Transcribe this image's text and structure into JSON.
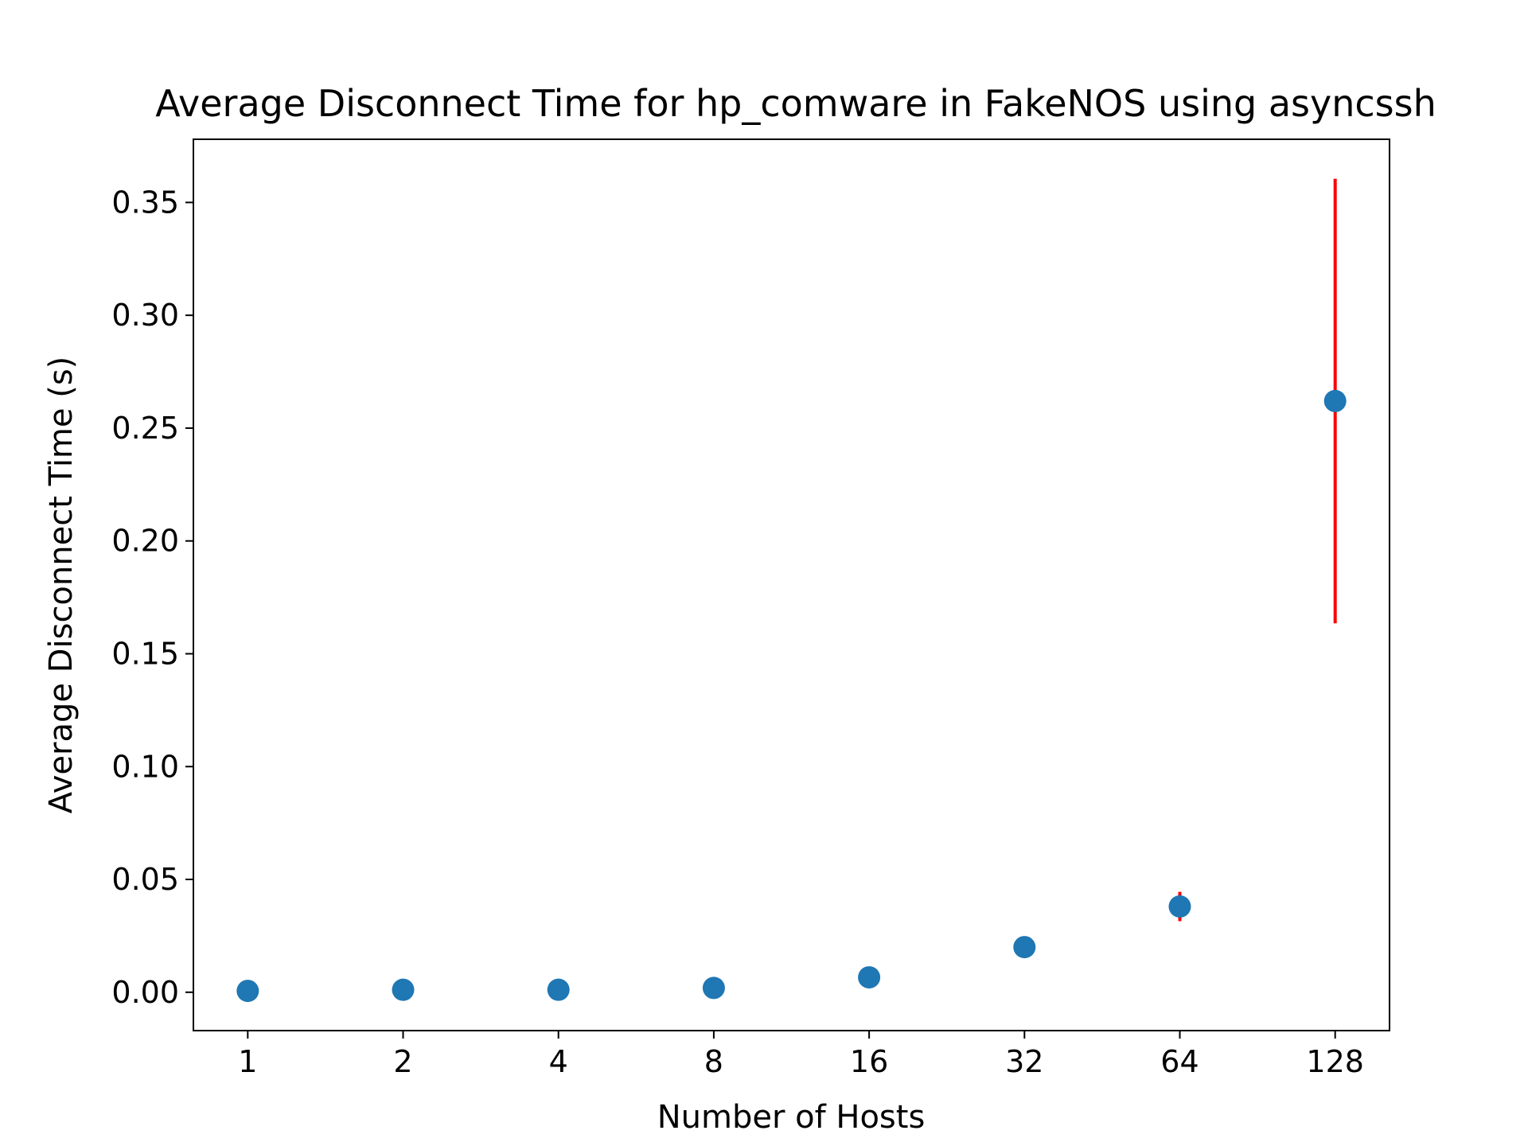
{
  "chart_data": {
    "type": "scatter",
    "title": "Average Disconnect Time for hp_comware in FakeNOS using asyncssh",
    "xlabel": "Number of Hosts",
    "ylabel": "Average Disconnect Time (s)",
    "x_scale": "log2",
    "x": [
      1,
      2,
      4,
      8,
      16,
      32,
      64,
      128
    ],
    "x_tick_labels": [
      "1",
      "2",
      "4",
      "8",
      "16",
      "32",
      "64",
      "128"
    ],
    "y_ticks": [
      0.0,
      0.05,
      0.1,
      0.15,
      0.2,
      0.25,
      0.3,
      0.35
    ],
    "y_tick_labels": [
      "0.00",
      "0.05",
      "0.10",
      "0.15",
      "0.20",
      "0.25",
      "0.30",
      "0.35"
    ],
    "ylim": [
      -0.017,
      0.378
    ],
    "grid": false,
    "legend": "none",
    "series": [
      {
        "values": [
          0.0006,
          0.0011,
          0.0011,
          0.0019,
          0.0066,
          0.02,
          0.038,
          0.262
        ],
        "error": [
          0,
          0,
          0,
          0,
          0,
          0,
          0.0065,
          0.0985
        ],
        "marker_color": "#1f77b4",
        "error_color": "#ff0000"
      }
    ]
  }
}
